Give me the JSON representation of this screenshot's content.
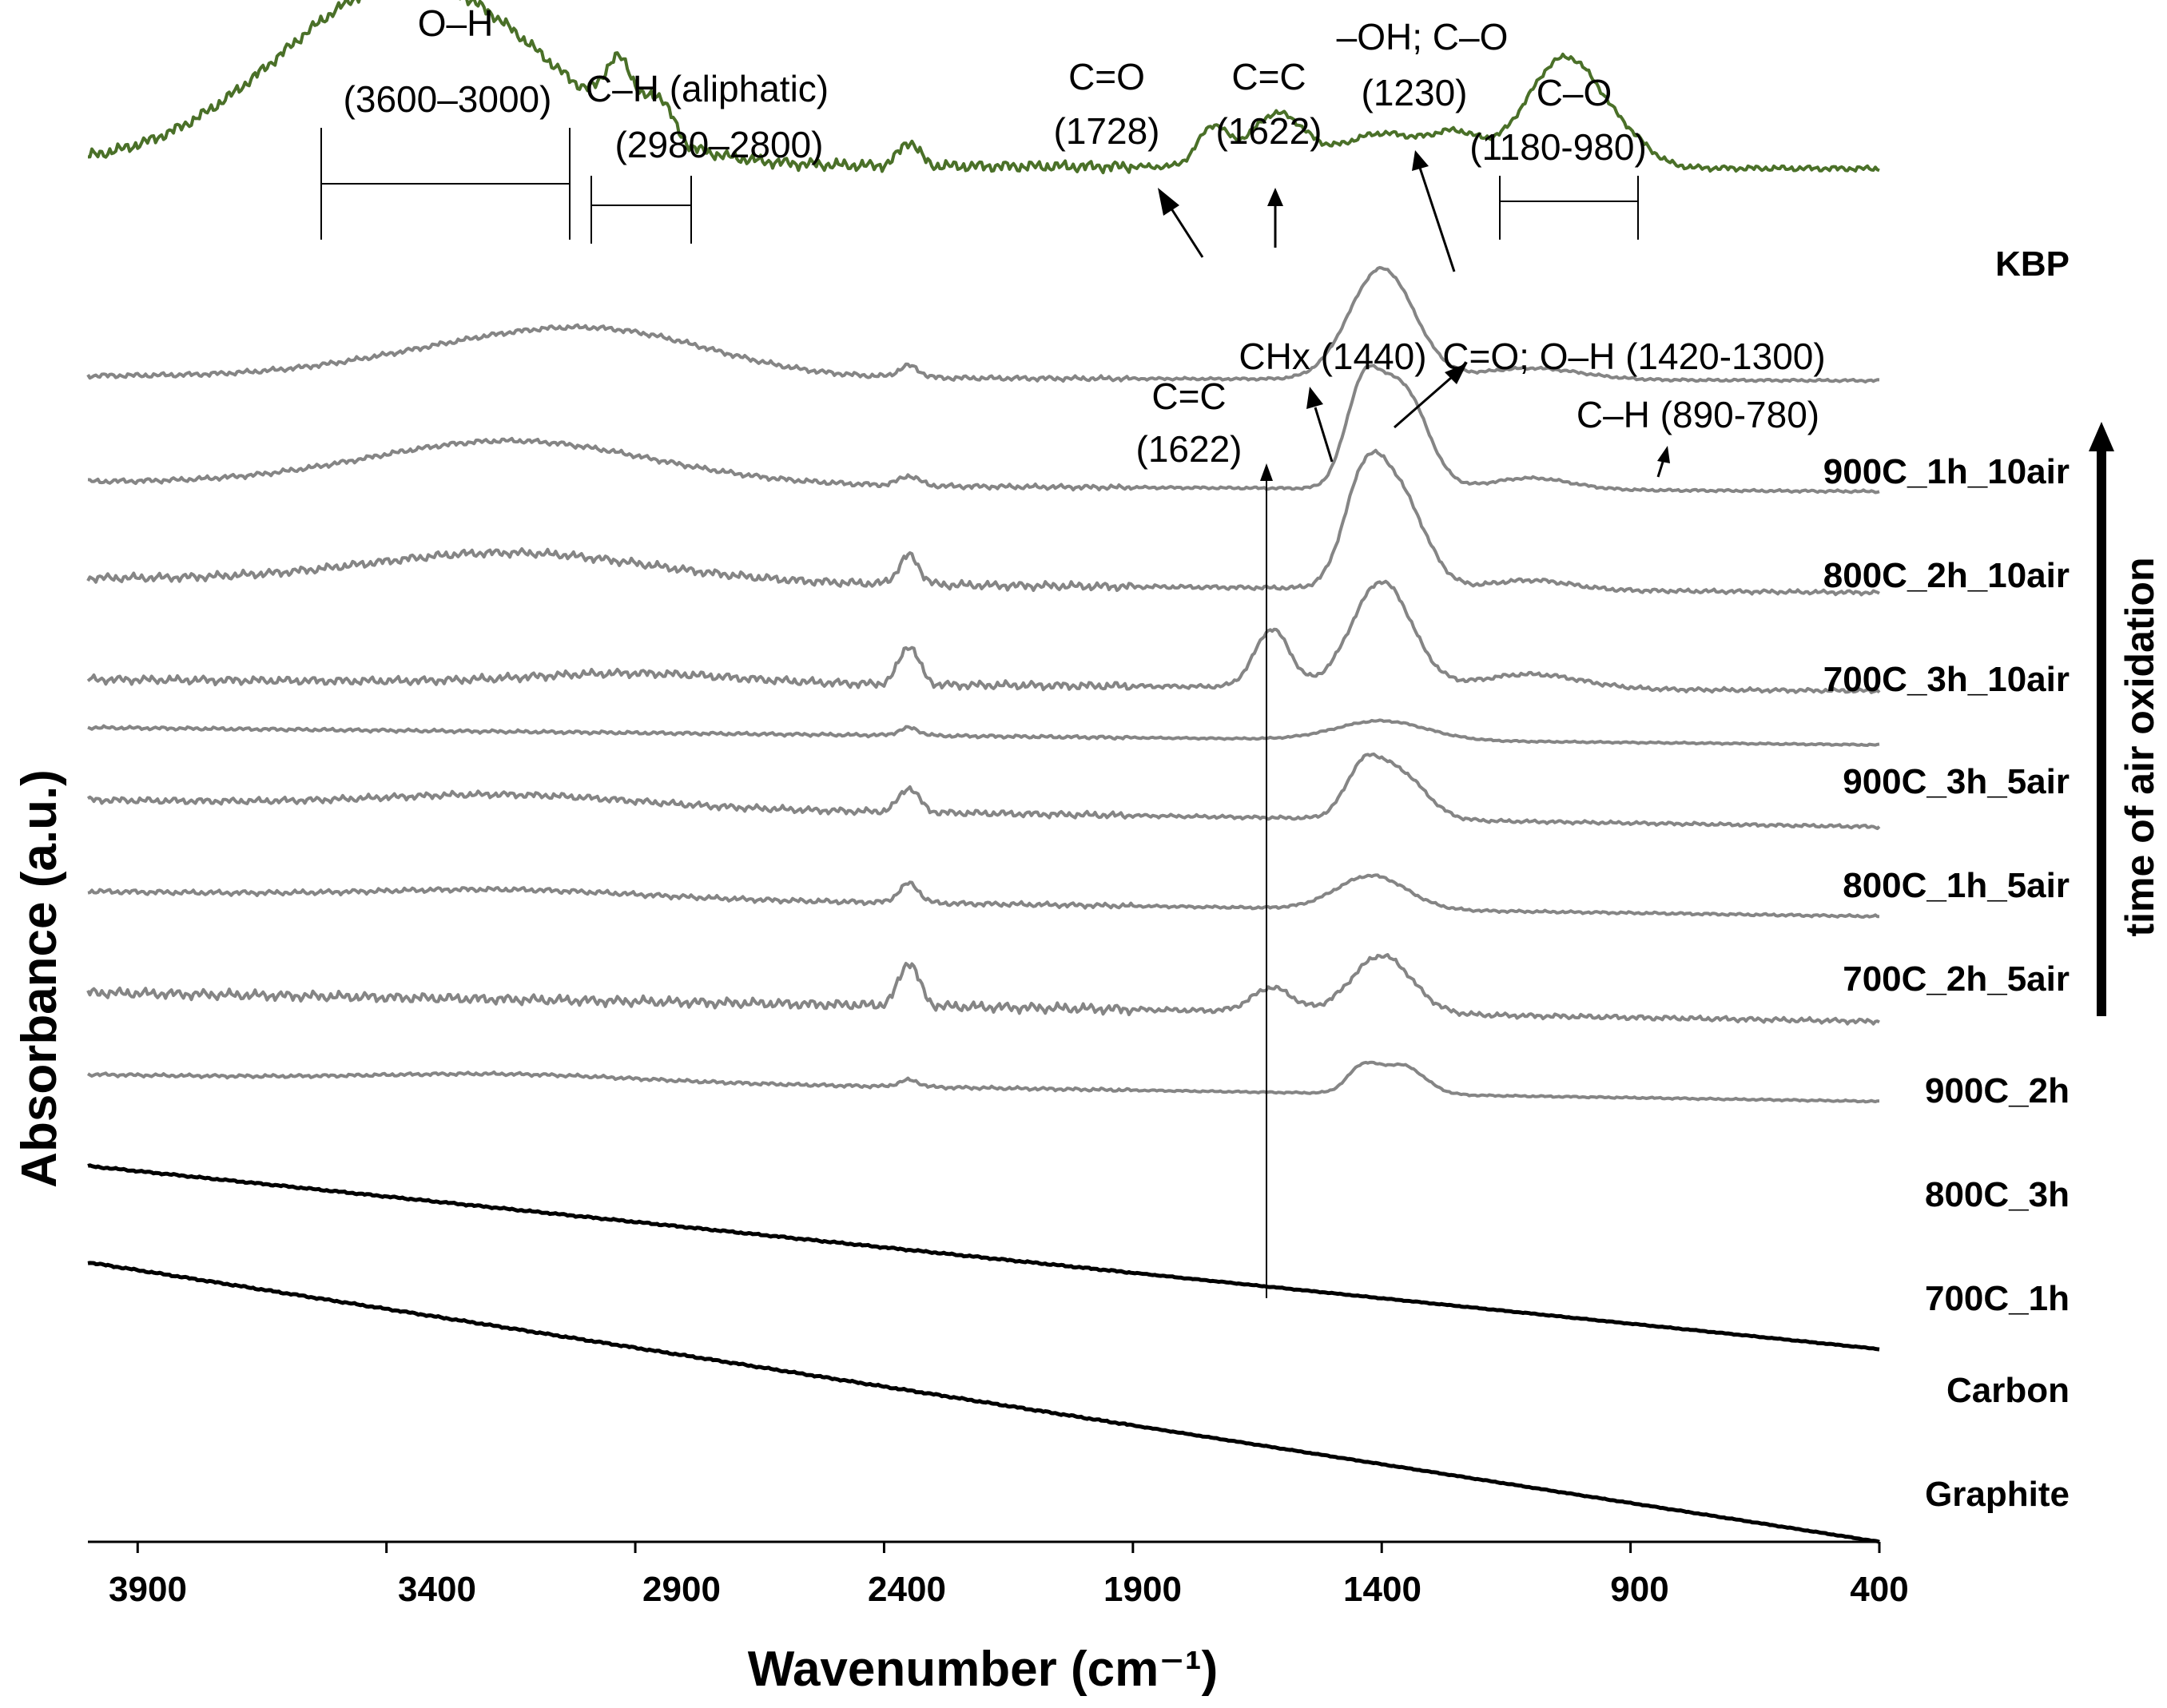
{
  "chart_data": {
    "type": "line",
    "title": "",
    "xlabel": "Wavenumber (cm⁻¹)",
    "ylabel": "Absorbance (a.u.)",
    "x_reversed": true,
    "xlim": [
      4000,
      400
    ],
    "ylim": [
      0,
      16
    ],
    "xticks": [
      {
        "value": 3900,
        "label": "3900"
      },
      {
        "value": 3400,
        "label": "3400"
      },
      {
        "value": 2900,
        "label": "2900"
      },
      {
        "value": 2400,
        "label": "2400"
      },
      {
        "value": 1900,
        "label": "1900"
      },
      {
        "value": 1400,
        "label": "1400"
      },
      {
        "value": 900,
        "label": "900"
      },
      {
        "value": 400,
        "label": "400"
      }
    ],
    "side_arrow_label": "time of air oxidation",
    "series": [
      {
        "name": "KBP",
        "color": "#4a7028",
        "width": 4,
        "baseline": 14.3,
        "slope": 0.05,
        "peaks": [
          [
            3350,
            1.9,
            260
          ],
          [
            2930,
            0.6,
            30
          ],
          [
            2850,
            0.4,
            25
          ],
          [
            2350,
            0.25,
            20
          ],
          [
            1740,
            0.4,
            30
          ],
          [
            1610,
            0.55,
            55
          ],
          [
            1400,
            0.35,
            80
          ],
          [
            1250,
            0.3,
            50
          ],
          [
            1030,
            1.15,
            80
          ],
          [
            890,
            0.1,
            40
          ]
        ],
        "noise": 0.07
      },
      {
        "name": "900C_1h_10air",
        "color": "#858585",
        "width": 4,
        "baseline": 12.1,
        "slope": 0.05,
        "peaks": [
          [
            3150,
            0.35,
            260
          ],
          [
            2900,
            0.25,
            200
          ],
          [
            2350,
            0.12,
            20
          ],
          [
            1400,
            1.15,
            65
          ],
          [
            1100,
            0.12,
            100
          ]
        ],
        "noise": 0.03
      },
      {
        "name": "800C_2h_10air",
        "color": "#858585",
        "width": 4,
        "baseline": 11.0,
        "slope": 0.1,
        "peaks": [
          [
            3150,
            0.45,
            280
          ],
          [
            2350,
            0.1,
            20
          ],
          [
            1440,
            0.9,
            35
          ],
          [
            1360,
            1.05,
            50
          ],
          [
            1100,
            0.12,
            80
          ]
        ],
        "noise": 0.03
      },
      {
        "name": "700C_3h_10air",
        "color": "#858585",
        "width": 4,
        "baseline": 10.0,
        "slope": 0.15,
        "peaks": [
          [
            3150,
            0.3,
            280
          ],
          [
            2350,
            0.3,
            20
          ],
          [
            1440,
            0.85,
            40
          ],
          [
            1370,
            1.0,
            55
          ],
          [
            1100,
            0.1,
            80
          ]
        ],
        "noise": 0.05
      },
      {
        "name": "900C_3h_5air",
        "color": "#858585",
        "width": 4,
        "baseline": 8.95,
        "slope": 0.12,
        "peaks": [
          [
            2900,
            0.1,
            200
          ],
          [
            2350,
            0.4,
            20
          ],
          [
            1620,
            0.6,
            35
          ],
          [
            1400,
            1.1,
            60
          ],
          [
            1100,
            0.15,
            100
          ]
        ],
        "noise": 0.05
      },
      {
        "name": "800C_1h_5air",
        "color": "#858585",
        "width": 4,
        "baseline": 8.45,
        "slope": 0.18,
        "peaks": [
          [
            2350,
            0.08,
            20
          ],
          [
            1400,
            0.2,
            90
          ]
        ],
        "noise": 0.02
      },
      {
        "name": "700C_2h_5air",
        "color": "#858585",
        "width": 4,
        "baseline": 7.7,
        "slope": 0.28,
        "peaks": [
          [
            3150,
            0.12,
            250
          ],
          [
            2350,
            0.25,
            20
          ],
          [
            1440,
            0.4,
            35
          ],
          [
            1370,
            0.5,
            55
          ]
        ],
        "noise": 0.04
      },
      {
        "name": "900C_2h",
        "color": "#858585",
        "width": 4,
        "baseline": 6.75,
        "slope": 0.26,
        "peaks": [
          [
            3150,
            0.08,
            250
          ],
          [
            2350,
            0.2,
            20
          ],
          [
            1420,
            0.35,
            70
          ]
        ],
        "noise": 0.03
      },
      {
        "name": "800C_3h",
        "color": "#858585",
        "width": 4,
        "baseline": 5.7,
        "slope": 0.3,
        "peaks": [
          [
            2350,
            0.45,
            20
          ],
          [
            1620,
            0.25,
            40
          ],
          [
            1400,
            0.6,
            60
          ]
        ],
        "noise": 0.06
      },
      {
        "name": "700C_1h",
        "color": "#858585",
        "width": 4,
        "baseline": 4.85,
        "slope": 0.28,
        "peaks": [
          [
            3150,
            0.07,
            250
          ],
          [
            2350,
            0.07,
            20
          ],
          [
            1440,
            0.25,
            30
          ],
          [
            1360,
            0.3,
            45
          ]
        ],
        "noise": 0.02
      },
      {
        "name": "Carbon",
        "color": "#000000",
        "width": 5,
        "baseline": 3.9,
        "slope": 1.9,
        "peaks": [],
        "noise": 0.01
      },
      {
        "name": "Graphite",
        "color": "#000000",
        "width": 5,
        "baseline": 2.9,
        "slope": 2.9,
        "peaks": [],
        "noise": 0.01
      }
    ],
    "annotations": {
      "oh": {
        "label": "O–H",
        "range_label": "(3600–3000)",
        "from": 3600,
        "to": 3000
      },
      "ch_aliph": {
        "label": "C–H (aliphatic)",
        "range_label": "(2980–2800)",
        "from": 2980,
        "to": 2800
      },
      "co_1728": {
        "label": "C=O",
        "value_label": "(1728)",
        "at": 1728
      },
      "cc_1622_top": {
        "label": "C=C",
        "value_label": "(1622)",
        "at": 1622
      },
      "oh_co_1230": {
        "label": "–OH; C–O",
        "value_label": "(1230)",
        "at": 1230
      },
      "co_range": {
        "label": "C–O",
        "range_label": "(1180-980)",
        "from": 1180,
        "to": 980
      },
      "chx_1440": {
        "label": "CHx (1440)",
        "at": 1440
      },
      "co_oh_range": {
        "label": "C=O; O–H (1420-1300)"
      },
      "cc_1622_lower": {
        "label": "C=C",
        "value_label": "(1622)",
        "at": 1622
      },
      "ch_890": {
        "label": "C–H (890-780)"
      }
    }
  }
}
